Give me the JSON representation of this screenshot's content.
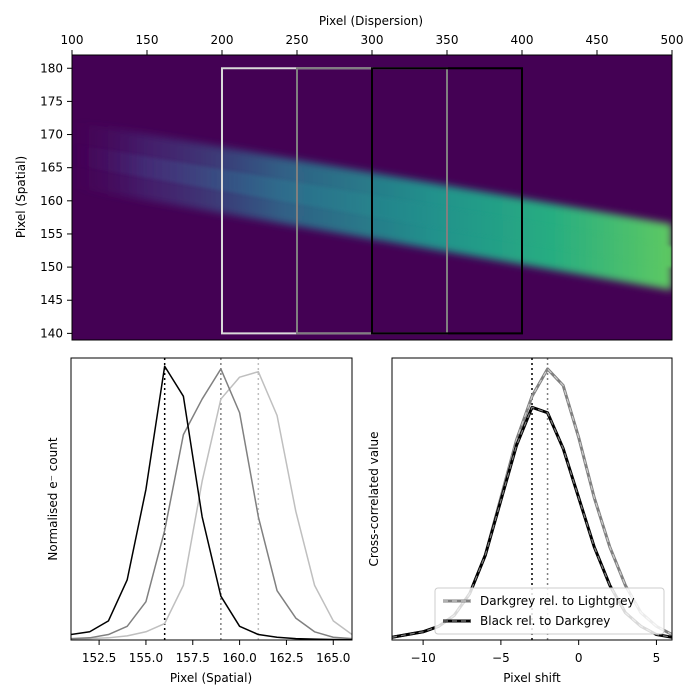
{
  "chart_data": [
    {
      "type": "heatmap",
      "id": "spectrum",
      "xlabel": "Pixel (Dispersion)",
      "ylabel": "Pixel (Spatial)",
      "xlim": [
        100,
        500
      ],
      "ylim": [
        139,
        182
      ],
      "xticks": [
        100,
        150,
        200,
        250,
        300,
        350,
        400,
        450,
        500
      ],
      "yticks": [
        140,
        145,
        150,
        155,
        160,
        165,
        170,
        175,
        180
      ],
      "colormap": "viridis",
      "trace": {
        "x": [
          100,
          500
        ],
        "y_center": [
          167,
          151.5
        ],
        "peak_value": [
          0.08,
          0.75
        ]
      },
      "boxes": [
        {
          "color": "#d9d9d9",
          "x": [
            200,
            300
          ],
          "y": [
            140,
            180
          ]
        },
        {
          "color": "#808080",
          "x": [
            250,
            350
          ],
          "y": [
            140,
            180
          ]
        },
        {
          "color": "#000000",
          "x": [
            300,
            400
          ],
          "y": [
            140,
            180
          ]
        }
      ]
    },
    {
      "type": "line",
      "id": "profiles",
      "xlabel": "Pixel (Spatial)",
      "ylabel": "Normalised e⁻ count",
      "xlim": [
        151,
        166
      ],
      "ylim": [
        0,
        1.03
      ],
      "xticks": [
        152.5,
        155.0,
        157.5,
        160.0,
        162.5,
        165.0
      ],
      "series": [
        {
          "color": "#000000",
          "x": [
            151,
            152,
            153,
            154,
            155,
            156,
            157,
            158,
            159,
            160,
            161,
            162,
            163,
            164,
            165,
            166
          ],
          "values": [
            0.02,
            0.03,
            0.07,
            0.22,
            0.55,
            1.0,
            0.89,
            0.45,
            0.16,
            0.05,
            0.02,
            0.01,
            0.005,
            0.003,
            0.002,
            0.001
          ]
        },
        {
          "color": "#808080",
          "x": [
            151,
            152,
            153,
            154,
            155,
            156,
            157,
            158,
            159,
            160,
            161,
            162,
            163,
            164,
            165,
            166
          ],
          "values": [
            0.005,
            0.008,
            0.02,
            0.05,
            0.14,
            0.4,
            0.75,
            0.88,
            0.99,
            0.83,
            0.45,
            0.18,
            0.08,
            0.03,
            0.01,
            0.005
          ]
        },
        {
          "color": "#bfbfbf",
          "x": [
            151,
            152,
            153,
            154,
            155,
            156,
            157,
            158,
            159,
            160,
            161,
            162,
            163,
            164,
            165,
            166
          ],
          "values": [
            0.003,
            0.005,
            0.008,
            0.015,
            0.03,
            0.06,
            0.2,
            0.58,
            0.88,
            0.96,
            0.98,
            0.82,
            0.47,
            0.2,
            0.07,
            0.02
          ]
        }
      ],
      "vlines": [
        {
          "x": 156,
          "color": "#000000"
        },
        {
          "x": 159,
          "color": "#808080"
        },
        {
          "x": 161,
          "color": "#bfbfbf"
        }
      ]
    },
    {
      "type": "line",
      "id": "crosscorr",
      "xlabel": "Pixel shift",
      "ylabel": "Cross-correlated value",
      "xlim": [
        -12,
        6
      ],
      "ylim": [
        0,
        1.03
      ],
      "xticks": [
        -10,
        -5,
        0,
        5
      ],
      "series": [
        {
          "name": "Darkgrey rel. to Lightgrey",
          "color": "#808080",
          "x": [
            -12,
            -11,
            -10,
            -9,
            -8,
            -7,
            -6,
            -5,
            -4,
            -3,
            -2,
            -1,
            0,
            1,
            2,
            3,
            4,
            5,
            6
          ],
          "values": [
            0.01,
            0.02,
            0.03,
            0.05,
            0.09,
            0.17,
            0.31,
            0.52,
            0.73,
            0.89,
            0.99,
            0.93,
            0.74,
            0.52,
            0.34,
            0.2,
            0.1,
            0.05,
            0.02
          ]
        },
        {
          "name": "Black rel. to Darkgrey",
          "color": "#000000",
          "x": [
            -12,
            -11,
            -10,
            -9,
            -8,
            -7,
            -6,
            -5,
            -4,
            -3,
            -2,
            -1,
            0,
            1,
            2,
            3,
            4,
            5,
            6
          ],
          "values": [
            0.01,
            0.02,
            0.03,
            0.05,
            0.09,
            0.17,
            0.31,
            0.51,
            0.71,
            0.85,
            0.83,
            0.7,
            0.52,
            0.34,
            0.2,
            0.1,
            0.05,
            0.02,
            0.01
          ]
        }
      ],
      "vlines": [
        {
          "x": -3,
          "color": "#000000"
        },
        {
          "x": -2,
          "color": "#808080"
        }
      ],
      "legend": "bottom-right"
    }
  ]
}
